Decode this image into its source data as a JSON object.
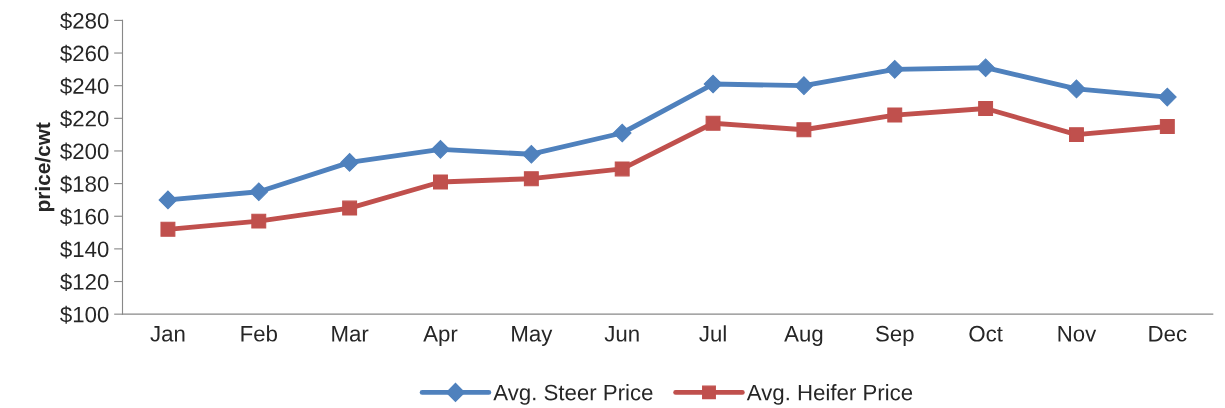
{
  "chart_data": {
    "type": "line",
    "ylabel": "price/cwt",
    "categories": [
      "Jan",
      "Feb",
      "Mar",
      "Apr",
      "May",
      "Jun",
      "Jul",
      "Aug",
      "Sep",
      "Oct",
      "Nov",
      "Dec"
    ],
    "series": [
      {
        "name": "Avg. Steer Price",
        "color": "#4f81bd",
        "marker": "diamond",
        "values": [
          170,
          175,
          193,
          201,
          198,
          211,
          241,
          240,
          250,
          251,
          238,
          233
        ]
      },
      {
        "name": "Avg. Heifer Price",
        "color": "#c0504d",
        "marker": "square",
        "values": [
          152,
          157,
          165,
          181,
          183,
          189,
          217,
          213,
          222,
          226,
          210,
          215
        ]
      }
    ],
    "ylim": [
      100,
      280
    ],
    "yticks": [
      {
        "value": 100,
        "label": "$100"
      },
      {
        "value": 120,
        "label": "$120"
      },
      {
        "value": 140,
        "label": "$140"
      },
      {
        "value": 160,
        "label": "$160"
      },
      {
        "value": 180,
        "label": "$180"
      },
      {
        "value": 200,
        "label": "$200"
      },
      {
        "value": 220,
        "label": "$220"
      },
      {
        "value": 240,
        "label": "$240"
      },
      {
        "value": 260,
        "label": "$260"
      },
      {
        "value": 280,
        "label": "$280"
      }
    ],
    "grid": false,
    "legend": "bottom"
  }
}
